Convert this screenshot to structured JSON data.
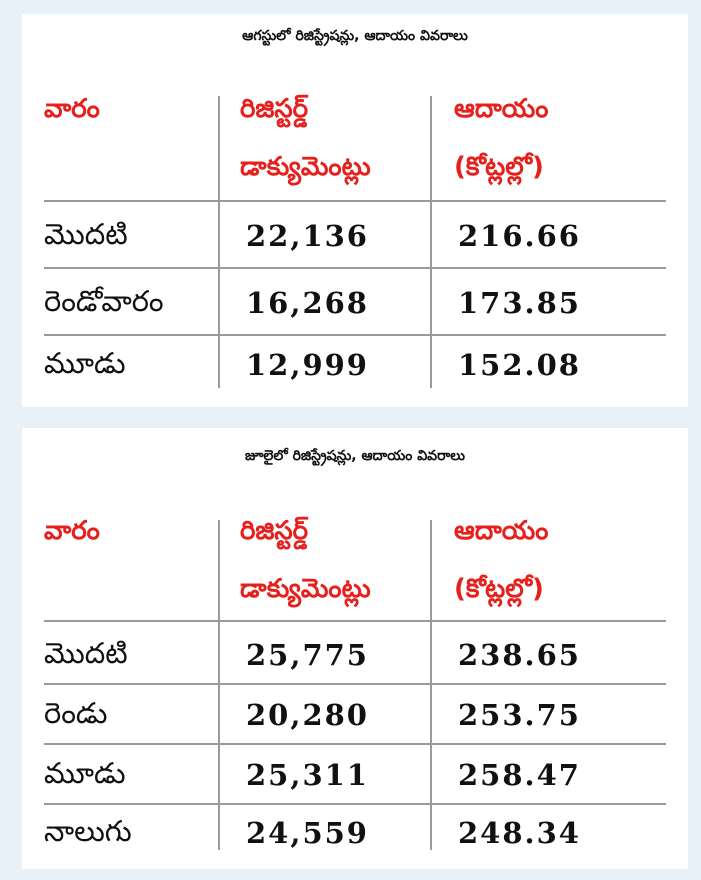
{
  "tables": [
    {
      "title": "ఆగస్టులో రిజిస్ట్రేషన్లు, ఆదాయం వివరాలు",
      "header": {
        "week": "వారం",
        "docs_line1": "రిజిస్టర్డ్",
        "docs_line2": "డాక్యుమెంట్లు",
        "rev_line1": "ఆదాయం",
        "rev_line2": "(కోట్లల్లో)"
      },
      "rows": [
        {
          "week": "మొదటి",
          "documents": "22,136",
          "revenue": "216.66"
        },
        {
          "week": "రెండోవారం",
          "documents": "16,268",
          "revenue": "173.85"
        },
        {
          "week": "మూడు",
          "documents": "12,999",
          "revenue": "152.08"
        }
      ]
    },
    {
      "title": "జూలైలో రిజిస్ట్రేషన్లు, ఆదాయం వివరాలు",
      "header": {
        "week": "వారం",
        "docs_line1": "రిజిస్టర్డ్",
        "docs_line2": "డాక్యుమెంట్లు",
        "rev_line1": "ఆదాయం",
        "rev_line2": "(కోట్లల్లో)"
      },
      "rows": [
        {
          "week": "మొదటి",
          "documents": "25,775",
          "revenue": "238.65"
        },
        {
          "week": "రెండు",
          "documents": "20,280",
          "revenue": "253.75"
        },
        {
          "week": "మూడు",
          "documents": "25,311",
          "revenue": "258.47"
        },
        {
          "week": "నాలుగు",
          "documents": "24,559",
          "revenue": "248.34"
        }
      ]
    }
  ],
  "colors": {
    "background": "#e8f1f8",
    "panel": "#ffffff",
    "header_text": "#e5201d",
    "body_text": "#111111",
    "rule": "#9a9a9a"
  }
}
